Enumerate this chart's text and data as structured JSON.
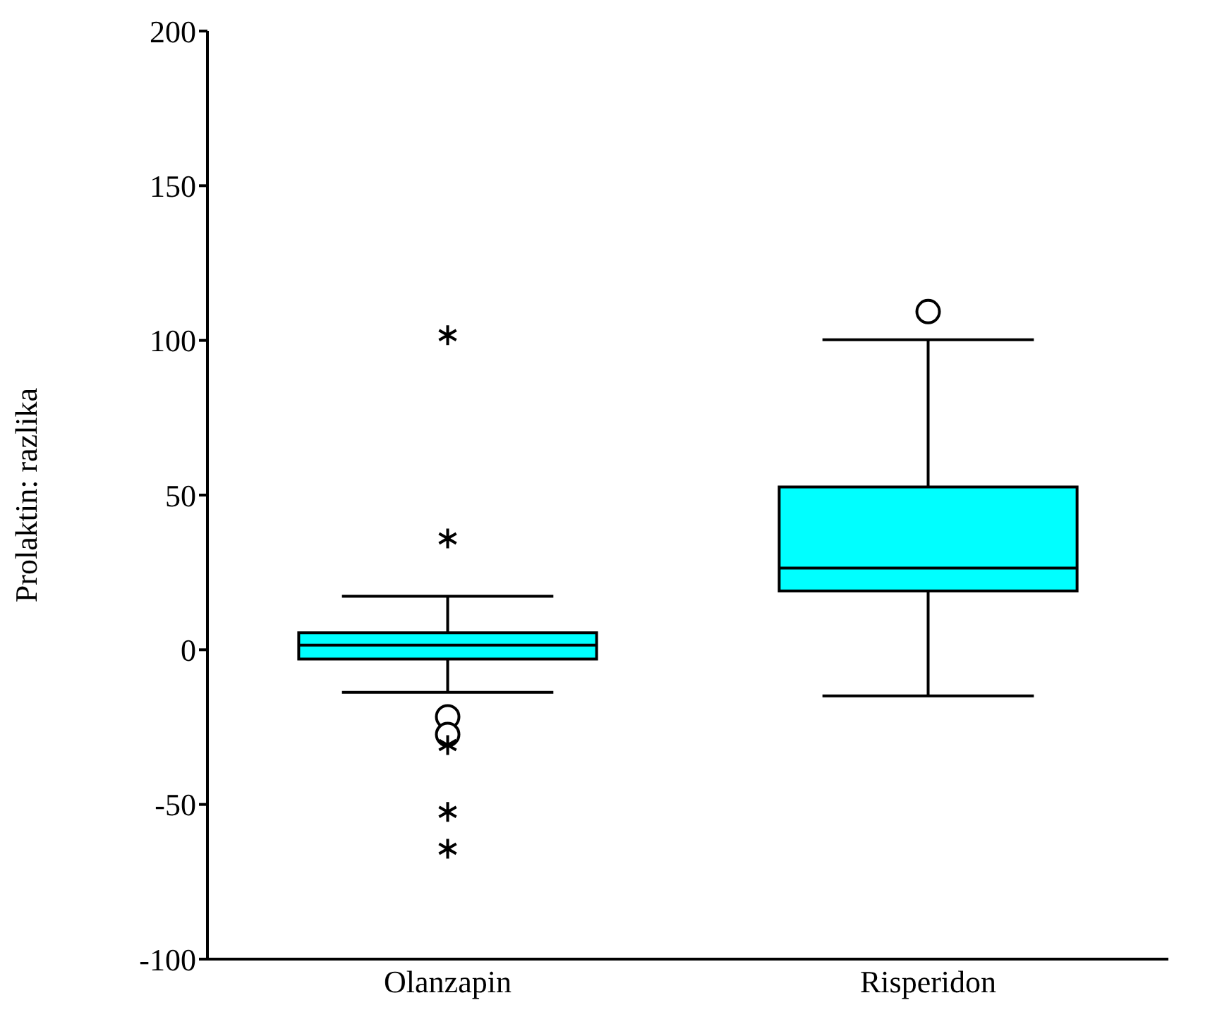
{
  "chart_data": {
    "type": "box",
    "ylabel": "Prolaktin: razlika",
    "categories": [
      "Olanzapin",
      "Risperidon"
    ],
    "ylim": [
      -100,
      200
    ],
    "yticks": [
      -100,
      -50,
      0,
      50,
      100,
      150,
      200
    ],
    "series": [
      {
        "type": "box",
        "color": "#00ffff",
        "boxes": [
          {
            "low": -13.8,
            "q1": -3,
            "median": 1.5,
            "q3": 5.5,
            "high": 17.3,
            "outliers": [
              -21.7,
              -27.4
            ]
          },
          {
            "low": -14.9,
            "q1": 19,
            "median": 26.4,
            "q3": 52.6,
            "high": 100.2,
            "outliers": [
              109.3
            ]
          }
        ]
      },
      {
        "type": "scatter",
        "marker": "cross",
        "color": "#000000",
        "x": [
          "Olanzapin",
          "Olanzapin",
          "Olanzapin",
          "Olanzapin",
          "Olanzapin"
        ],
        "values": [
          101.7,
          36,
          -30.8,
          -52.4,
          -64.3
        ]
      }
    ]
  }
}
